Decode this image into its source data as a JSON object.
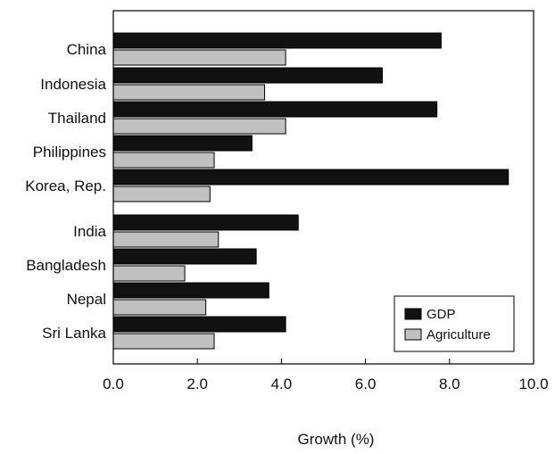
{
  "chart_data": {
    "type": "bar",
    "orientation": "horizontal",
    "categories": [
      "China",
      "Indonesia",
      "Thailand",
      "Philippines",
      "Korea, Rep.",
      "India",
      "Bangladesh",
      "Nepal",
      "Sri Lanka"
    ],
    "series": [
      {
        "name": "GDP",
        "color": "#111111",
        "values": [
          7.8,
          6.4,
          7.7,
          3.3,
          9.4,
          4.4,
          3.4,
          3.7,
          4.1
        ]
      },
      {
        "name": "Agriculture",
        "color": "#c0c0c0",
        "values": [
          4.1,
          3.6,
          4.1,
          2.4,
          2.3,
          2.5,
          1.7,
          2.2,
          2.4
        ]
      }
    ],
    "xlabel": "Growth (%)",
    "ylabel": "",
    "xlim": [
      0,
      10
    ],
    "xticks": [
      0,
      2,
      4,
      6,
      8,
      10
    ],
    "xtick_labels": [
      "0.0",
      "2.0",
      "4.0",
      "6.0",
      "8.0",
      "10.0"
    ],
    "grid": false,
    "legend_position": "bottom-right"
  }
}
